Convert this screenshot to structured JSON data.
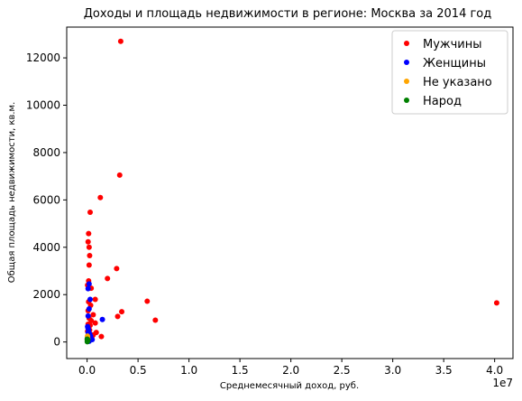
{
  "chart_data": {
    "type": "scatter",
    "title": "Доходы и площадь недвижимости в регионе: Москва за 2014 год",
    "xlabel": "Среднемесячный доход, руб.",
    "ylabel": "Общая площадь недвижимости, кв.м.",
    "x_offset_label": "1e7",
    "x_unit_multiplier": 10000000,
    "xlim": [
      -2000000,
      41800000
    ],
    "ylim": [
      -700,
      13300
    ],
    "x_ticks": [
      0,
      5000000,
      10000000,
      15000000,
      20000000,
      25000000,
      30000000,
      35000000,
      40000000
    ],
    "x_tick_labels": [
      "0.0",
      "0.5",
      "1.0",
      "1.5",
      "2.0",
      "2.5",
      "3.0",
      "3.5",
      "4.0"
    ],
    "y_ticks": [
      0,
      2000,
      4000,
      6000,
      8000,
      10000,
      12000
    ],
    "y_tick_labels": [
      "0",
      "2000",
      "4000",
      "6000",
      "8000",
      "10000",
      "12000"
    ],
    "grid": false,
    "legend_position": "top-right",
    "series": [
      {
        "name": "Мужчины",
        "color": "#ff0000",
        "points": [
          [
            3300000,
            12700
          ],
          [
            3200000,
            7050
          ],
          [
            1300000,
            6100
          ],
          [
            300000,
            5480
          ],
          [
            150000,
            4580
          ],
          [
            100000,
            4230
          ],
          [
            200000,
            4000
          ],
          [
            250000,
            3650
          ],
          [
            200000,
            3250
          ],
          [
            2900000,
            3100
          ],
          [
            2000000,
            2680
          ],
          [
            150000,
            2580
          ],
          [
            50000,
            2400
          ],
          [
            400000,
            2270
          ],
          [
            40200000,
            1650
          ],
          [
            5900000,
            1720
          ],
          [
            6700000,
            920
          ],
          [
            3400000,
            1280
          ],
          [
            3000000,
            1080
          ],
          [
            800000,
            1800
          ],
          [
            150000,
            1700
          ],
          [
            350000,
            1550
          ],
          [
            100000,
            1320
          ],
          [
            600000,
            1150
          ],
          [
            200000,
            1000
          ],
          [
            400000,
            900
          ],
          [
            800000,
            800
          ],
          [
            100000,
            750
          ],
          [
            300000,
            700
          ],
          [
            900000,
            400
          ],
          [
            1400000,
            230
          ],
          [
            600000,
            300
          ],
          [
            100000,
            600
          ],
          [
            250000,
            500
          ],
          [
            50000,
            450
          ],
          [
            500000,
            250
          ],
          [
            200000,
            350
          ],
          [
            150000,
            150
          ],
          [
            300000,
            100
          ],
          [
            400000,
            200
          ]
        ]
      },
      {
        "name": "Женщины",
        "color": "#0000ff",
        "points": [
          [
            200000,
            2450
          ],
          [
            100000,
            2250
          ],
          [
            300000,
            1800
          ],
          [
            1500000,
            950
          ],
          [
            200000,
            1400
          ],
          [
            100000,
            1100
          ],
          [
            50000,
            650
          ],
          [
            150000,
            500
          ],
          [
            100000,
            400
          ],
          [
            250000,
            350
          ],
          [
            200000,
            300
          ],
          [
            50000,
            200
          ],
          [
            300000,
            150
          ],
          [
            150000,
            120
          ],
          [
            500000,
            100
          ],
          [
            100000,
            80
          ],
          [
            30000,
            50
          ],
          [
            200000,
            30
          ],
          [
            80000,
            600
          ],
          [
            350000,
            250
          ]
        ]
      },
      {
        "name": "Не указано",
        "color": "#ffa500",
        "points": [
          [
            40000,
            250
          ],
          [
            60000,
            150
          ],
          [
            20000,
            80
          ]
        ]
      },
      {
        "name": "Народ",
        "color": "#008000",
        "points": [
          [
            10000,
            120
          ],
          [
            30000,
            60
          ],
          [
            50000,
            30
          ],
          [
            20000,
            10
          ],
          [
            70000,
            90
          ]
        ]
      }
    ]
  }
}
